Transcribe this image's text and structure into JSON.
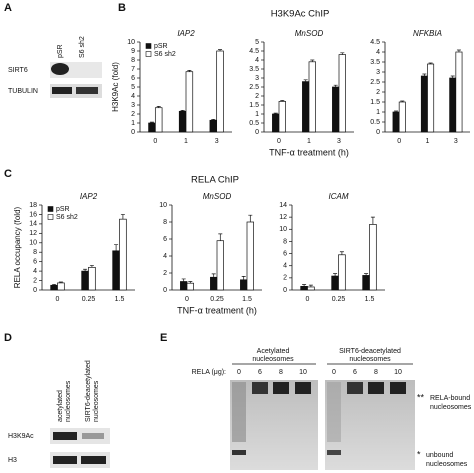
{
  "panel_labels": [
    "A",
    "B",
    "C",
    "D",
    "E"
  ],
  "rows": [
    {
      "title": "H3K9Ac ChIP"
    },
    {
      "title": "RELA ChIP"
    }
  ],
  "blot_a": {
    "lanes": [
      "pSR",
      "S6 sh2"
    ],
    "rows": [
      "SIRT6",
      "TUBULIN"
    ]
  },
  "blot_d": {
    "lanes": [
      [
        "acetylated",
        "nucleosomes"
      ],
      [
        "SIRT6-deacetylated",
        "nucleosomes"
      ]
    ],
    "rows": [
      "H3K9Ac",
      "H3"
    ]
  },
  "gel": {
    "groups": [
      [
        "Acetylated",
        "nucleosomes"
      ],
      [
        "SIRT6-deacetylated",
        "nucleosomes"
      ]
    ],
    "dose_label": "RELA (μg):",
    "lanes": [
      "0",
      "6",
      "8",
      "10",
      "0",
      "6",
      "8",
      "10"
    ],
    "annotations": [
      {
        "mark": "**",
        "lines": [
          "RELA-bound",
          "nucleosomes"
        ]
      },
      {
        "mark": "*",
        "lines": [
          "unbound",
          "nucleosomes"
        ]
      }
    ]
  },
  "chart_data": [
    {
      "type": "bar",
      "title": "IAP2",
      "ylabel": "H3K9Ac (fold)",
      "categories": [
        "0",
        "1",
        "3"
      ],
      "series": [
        {
          "name": "pSR",
          "color": "#111111",
          "values": [
            1,
            2.3,
            1.3
          ],
          "errors": [
            0.1,
            0.1,
            0.1
          ]
        },
        {
          "name": "S6 sh2",
          "color": "#ffffff",
          "values": [
            2.7,
            6.7,
            9.0
          ],
          "errors": [
            0.15,
            0.15,
            0.15
          ]
        }
      ],
      "ylim": [
        0,
        10
      ],
      "yticks": [
        0,
        1,
        2,
        3,
        4,
        5,
        6,
        7,
        8,
        9,
        10
      ]
    },
    {
      "type": "bar",
      "title": "MnSOD",
      "xlabel": "TNF-α treatment (h)",
      "categories": [
        "0",
        "1",
        "3"
      ],
      "series": [
        {
          "color": "#111111",
          "values": [
            1,
            2.8,
            2.5
          ],
          "errors": [
            0.05,
            0.1,
            0.1
          ]
        },
        {
          "color": "#ffffff",
          "values": [
            1.7,
            3.9,
            4.3
          ],
          "errors": [
            0.05,
            0.1,
            0.1
          ]
        }
      ],
      "ylim": [
        0,
        5
      ],
      "yticks": [
        0,
        0.5,
        1,
        1.5,
        2,
        2.5,
        3,
        3.5,
        4,
        4.5,
        5
      ]
    },
    {
      "type": "bar",
      "title": "NFKBIA",
      "categories": [
        "0",
        "1",
        "3"
      ],
      "series": [
        {
          "color": "#111111",
          "values": [
            1,
            2.8,
            2.7
          ],
          "errors": [
            0.05,
            0.1,
            0.1
          ]
        },
        {
          "color": "#ffffff",
          "values": [
            1.5,
            3.4,
            4.0
          ],
          "errors": [
            0.05,
            0.05,
            0.1
          ]
        }
      ],
      "ylim": [
        0,
        4.5
      ],
      "yticks": [
        0,
        0.5,
        1,
        1.5,
        2,
        2.5,
        3,
        3.5,
        4,
        4.5
      ]
    },
    {
      "type": "bar",
      "title": "IAP2",
      "ylabel": "RELA occupancy (fold)",
      "categories": [
        "0",
        "0.25",
        "1.5"
      ],
      "series": [
        {
          "name": "pSR",
          "color": "#111111",
          "values": [
            1,
            4,
            8.3
          ],
          "errors": [
            0.2,
            0.4,
            1.3
          ]
        },
        {
          "name": "S6 sh2",
          "color": "#ffffff",
          "values": [
            1.5,
            4.8,
            15
          ],
          "errors": [
            0.2,
            0.4,
            1.0
          ]
        }
      ],
      "ylim": [
        0,
        18
      ],
      "yticks": [
        0,
        2,
        4,
        6,
        8,
        10,
        12,
        14,
        16,
        18
      ]
    },
    {
      "type": "bar",
      "title": "MnSOD",
      "xlabel": "TNF-α treatment (h)",
      "categories": [
        "0",
        "0.25",
        "1.5"
      ],
      "series": [
        {
          "color": "#111111",
          "values": [
            1,
            1.5,
            1.2
          ],
          "errors": [
            0.3,
            0.4,
            0.4
          ]
        },
        {
          "color": "#ffffff",
          "values": [
            0.8,
            5.8,
            8
          ],
          "errors": [
            0.2,
            0.8,
            0.8
          ]
        }
      ],
      "ylim": [
        0,
        10
      ],
      "yticks": [
        0,
        2,
        4,
        6,
        8,
        10
      ]
    },
    {
      "type": "bar",
      "title": "ICAM",
      "categories": [
        "0",
        "0.25",
        "1.5"
      ],
      "series": [
        {
          "color": "#111111",
          "values": [
            0.6,
            2.3,
            2.4
          ],
          "errors": [
            0.3,
            0.4,
            0.3
          ]
        },
        {
          "color": "#ffffff",
          "values": [
            0.5,
            5.8,
            10.8
          ],
          "errors": [
            0.3,
            0.5,
            1.2
          ]
        }
      ],
      "ylim": [
        0,
        14
      ],
      "yticks": [
        0,
        2,
        4,
        6,
        8,
        10,
        12,
        14
      ]
    }
  ]
}
